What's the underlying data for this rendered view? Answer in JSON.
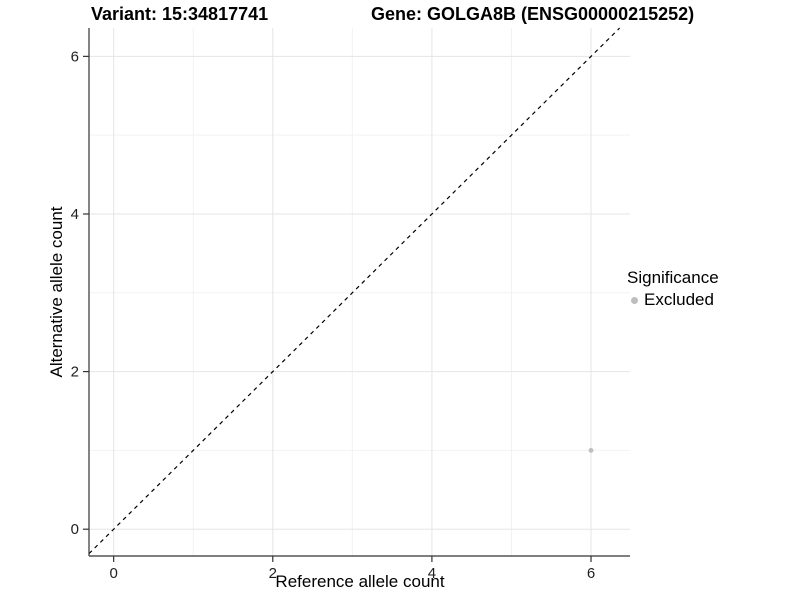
{
  "header": {
    "variant_title": "Variant: 15:34817741",
    "gene_title": "Gene: GOLGA8B (ENSG00000215252)"
  },
  "chart_data": {
    "type": "scatter",
    "xlabel": "Reference allele count",
    "ylabel": "Alternative allele count",
    "xlim": [
      -0.31,
      6.49
    ],
    "ylim": [
      -0.34,
      6.36
    ],
    "x_ticks": [
      0,
      2,
      4,
      6
    ],
    "y_ticks": [
      0,
      2,
      4,
      6
    ],
    "x_minor_ticks": [
      1,
      3,
      5
    ],
    "y_minor_ticks": [
      1,
      3,
      5
    ],
    "grid": "major+minor",
    "identity_line": {
      "style": "dashed",
      "slope": 1,
      "intercept": 0,
      "color": "#000000"
    },
    "series": [
      {
        "name": "Excluded",
        "color": "#bebebe",
        "points": [
          {
            "x": 6,
            "y": 1
          }
        ]
      }
    ],
    "legend": {
      "title": "Significance",
      "position": "right",
      "entries": [
        {
          "label": "Excluded",
          "color": "#bebebe"
        }
      ]
    }
  },
  "colors": {
    "background": "#ffffff",
    "grid_major": "#e5e5e5",
    "grid_minor": "#f2f2f2",
    "axis_line": "#333333",
    "tick_label": "#1f1f1f",
    "title_text": "#000000"
  }
}
